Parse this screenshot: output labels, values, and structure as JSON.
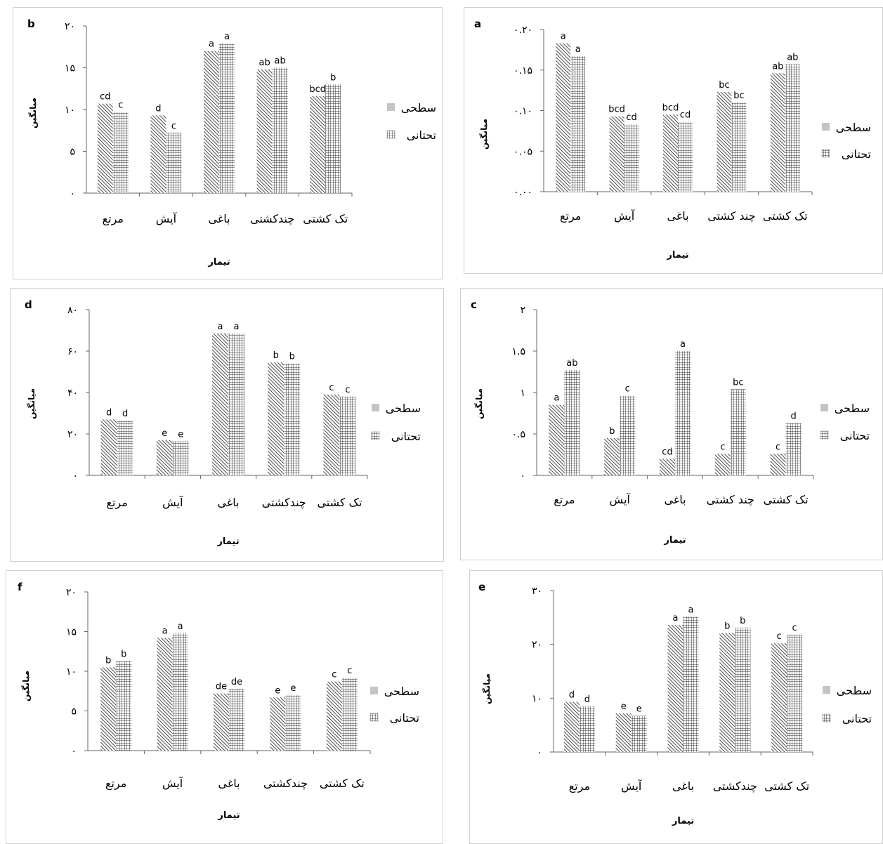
{
  "chart_data": [
    {
      "id": "b",
      "type": "bar",
      "panel_label": "b",
      "categories": [
        "مرتع",
        "آیش",
        "باغی",
        "چندکشتی",
        "تک کشتی"
      ],
      "series": [
        {
          "name": "سطحی",
          "values": [
            10.7,
            9.3,
            17.0,
            14.8,
            11.6
          ]
        },
        {
          "name": "تحتانی",
          "values": [
            9.7,
            7.2,
            17.9,
            15.0,
            13.0
          ]
        }
      ],
      "letters": [
        [
          "cd",
          "c"
        ],
        [
          "d",
          "c"
        ],
        [
          "a",
          "a"
        ],
        [
          "ab",
          "ab"
        ],
        [
          "bcd",
          "b"
        ]
      ],
      "ylim": [
        0,
        20
      ],
      "yticks": [
        "۰",
        "۵",
        "۱۰",
        "۱۵",
        "۲۰"
      ],
      "ylabel": "میانگین",
      "xlabel": "تیمار"
    },
    {
      "id": "a",
      "type": "bar",
      "panel_label": "a",
      "categories": [
        "مرتع",
        "آیش",
        "باغی",
        "چند کشتی",
        "تک کشتی"
      ],
      "series": [
        {
          "name": "سطحی",
          "values": [
            0.183,
            0.093,
            0.095,
            0.123,
            0.146
          ]
        },
        {
          "name": "تحتانی",
          "values": [
            0.167,
            0.083,
            0.086,
            0.11,
            0.157
          ]
        }
      ],
      "letters": [
        [
          "a",
          "a"
        ],
        [
          "bcd",
          "cd"
        ],
        [
          "bcd",
          "cd"
        ],
        [
          "bc",
          "bc"
        ],
        [
          "ab",
          "ab"
        ]
      ],
      "ylim": [
        0,
        0.2
      ],
      "yticks": [
        "۰.۰۰",
        "۰.۰۵",
        "۰.۱۰",
        "۰.۱۵",
        "۰.۲۰"
      ],
      "ylabel": "میانگین",
      "xlabel": "تیمار"
    },
    {
      "id": "d",
      "type": "bar",
      "panel_label": "d",
      "categories": [
        "مرتع",
        "آیش",
        "باغی",
        "چندکشتی",
        "تک کشتی"
      ],
      "series": [
        {
          "name": "سطحی",
          "values": [
            27,
            17,
            68.5,
            54.5,
            39
          ]
        },
        {
          "name": "تحتانی",
          "values": [
            26.5,
            16.5,
            68.5,
            54,
            38
          ]
        }
      ],
      "letters": [
        [
          "d",
          "d"
        ],
        [
          "e",
          "e"
        ],
        [
          "a",
          "a"
        ],
        [
          "b",
          "b"
        ],
        [
          "c",
          "c"
        ]
      ],
      "ylim": [
        0,
        80
      ],
      "yticks": [
        "۰",
        "۲۰",
        "۴۰",
        "۶۰",
        "۸۰"
      ],
      "ylabel": "میانگین",
      "xlabel": "تیمار"
    },
    {
      "id": "c",
      "type": "bar",
      "panel_label": "c",
      "categories": [
        "مرتع",
        "آیش",
        "باغی",
        "چند کشتی",
        "تک کشتی"
      ],
      "series": [
        {
          "name": "سطحی",
          "values": [
            0.85,
            0.45,
            0.2,
            0.26,
            0.26
          ]
        },
        {
          "name": "تحتانی",
          "values": [
            1.27,
            0.96,
            1.5,
            1.04,
            0.63
          ]
        }
      ],
      "letters": [
        [
          "a",
          "ab"
        ],
        [
          "b",
          "c"
        ],
        [
          "cd",
          "a"
        ],
        [
          "c",
          "bc"
        ],
        [
          "c",
          "d"
        ]
      ],
      "ylim": [
        0,
        2
      ],
      "yticks": [
        "۰",
        "۰.۵",
        "۱",
        "۱.۵",
        "۲"
      ],
      "ylabel": "میانگین",
      "xlabel": "تیمار"
    },
    {
      "id": "f",
      "type": "bar",
      "panel_label": "f",
      "categories": [
        "مرتع",
        "آیش",
        "باغی",
        "چندکشتی",
        "تک کشتی"
      ],
      "series": [
        {
          "name": "سطحی",
          "values": [
            10.5,
            14.2,
            7.2,
            6.7,
            8.7
          ]
        },
        {
          "name": "تحتانی",
          "values": [
            11.3,
            14.8,
            7.8,
            7.0,
            9.2
          ]
        }
      ],
      "letters": [
        [
          "b",
          "b"
        ],
        [
          "a",
          "a"
        ],
        [
          "de",
          "de"
        ],
        [
          "e",
          "e"
        ],
        [
          "c",
          "c"
        ]
      ],
      "ylim": [
        0,
        20
      ],
      "yticks": [
        "۰",
        "۵",
        "۱۰",
        "۱۵",
        "۲۰"
      ],
      "ylabel": "میانگین",
      "xlabel": "تیمار"
    },
    {
      "id": "e",
      "type": "bar",
      "panel_label": "e",
      "categories": [
        "مرتع",
        "آیش",
        "باغی",
        "چندکشتی",
        "تک کشتی"
      ],
      "series": [
        {
          "name": "سطحی",
          "values": [
            9.3,
            7.2,
            23.6,
            22.1,
            20.2
          ]
        },
        {
          "name": "تحتانی",
          "values": [
            8.5,
            6.7,
            25.1,
            23.1,
            21.8
          ]
        }
      ],
      "letters": [
        [
          "d",
          "d"
        ],
        [
          "e",
          "e"
        ],
        [
          "a",
          "a"
        ],
        [
          "b",
          "b"
        ],
        [
          "c",
          "c"
        ]
      ],
      "ylim": [
        0,
        30
      ],
      "yticks": [
        "۰",
        "۱۰",
        "۲۰",
        "۳۰"
      ],
      "ylabel": "میانگین",
      "xlabel": "تیمار"
    }
  ],
  "legend": {
    "surface": "سطحی",
    "subsurface": "تحتانی"
  },
  "colors": {
    "axis": "#555555",
    "text": "#000000",
    "frame": "#d0d0d0"
  }
}
